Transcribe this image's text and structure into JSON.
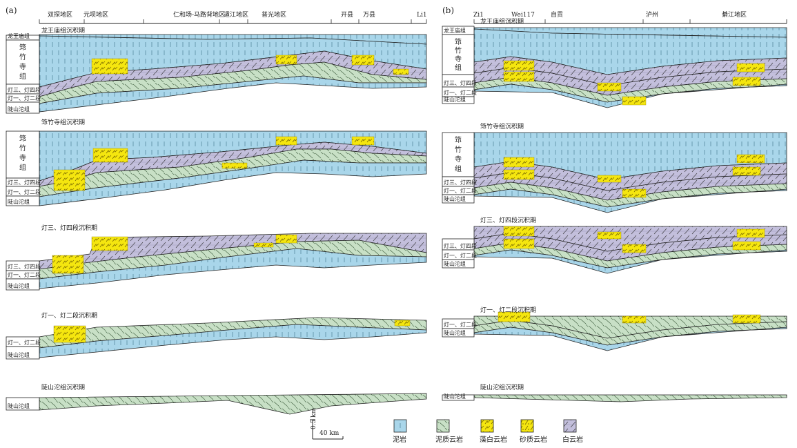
{
  "panel_a": {
    "label": "(a)",
    "regions": [
      "双探地区",
      "元坝地区",
      "仁和场-马路背地区",
      "遁江地区",
      "普光地区",
      "开县",
      "万县",
      "Li1"
    ],
    "periods": [
      {
        "title": "龙王庙组沉积期",
        "units": [
          "龙王庙组",
          "筇竹寺组",
          "灯三、灯四段",
          "灯一、灯二段",
          "陡山沱组"
        ]
      },
      {
        "title": "筇竹寺组沉积期",
        "units": [
          "筇竹寺组",
          "灯三、灯四段",
          "灯一、灯二段",
          "陡山沱组"
        ]
      },
      {
        "title": "灯三、灯四段沉积期",
        "units": [
          "灯三、灯四段",
          "灯一、灯二段",
          "陡山沱组"
        ]
      },
      {
        "title": "灯一、灯二段沉积期",
        "units": [
          "灯一、灯二段",
          "陡山沱组"
        ]
      },
      {
        "title": "陡山沱组沉积期",
        "units": [
          "陡山沱组"
        ]
      }
    ]
  },
  "panel_b": {
    "label": "(b)",
    "regions": [
      "Zi1",
      "Wei117",
      "自贡",
      "泸州",
      "綦江地区"
    ],
    "periods": [
      {
        "title": "龙王庙组沉积期",
        "units": [
          "龙王庙组",
          "筇竹寺组",
          "灯三、灯四段",
          "灯一、灯二段",
          "陡山沱组"
        ]
      },
      {
        "title": "筇竹寺组沉积期",
        "units": [
          "筇竹寺组",
          "灯三、灯四段",
          "灯一、灯二段",
          "陡山沱组"
        ]
      },
      {
        "title": "灯三、灯四段沉积期",
        "units": [
          "灯三、灯四段",
          "灯一、灯二段",
          "陡山沱组"
        ]
      },
      {
        "title": "灯一、灯二段沉积期",
        "units": [
          "灯一、灯二段",
          "陡山沱组"
        ]
      },
      {
        "title": "陡山沱组沉积期",
        "units": [
          "陡山沱组"
        ]
      }
    ]
  },
  "scale": {
    "vertical": "0.5 km",
    "horizontal": "40 km"
  },
  "legend": [
    {
      "label": "泥岩",
      "pattern": "mud"
    },
    {
      "label": "泥质云岩",
      "pattern": "marl"
    },
    {
      "label": "藻白云岩",
      "pattern": "algal"
    },
    {
      "label": "砂质云岩",
      "pattern": "sandy"
    },
    {
      "label": "白云岩",
      "pattern": "dolo"
    }
  ],
  "colors": {
    "mudstone": "#a9d6ea",
    "argillaceous_dolomite": "#c8e0c6",
    "algal_dolomite": "#f5e60f",
    "sandy_dolomite": "#f5e60f",
    "dolomite": "#c3bfdc"
  }
}
